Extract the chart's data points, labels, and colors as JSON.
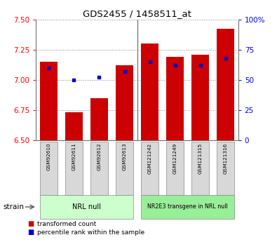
{
  "title": "GDS2455 / 1458511_at",
  "categories": [
    "GSM92610",
    "GSM92611",
    "GSM92612",
    "GSM92613",
    "GSM121242",
    "GSM121249",
    "GSM121315",
    "GSM121316"
  ],
  "transformed_count": [
    7.15,
    6.73,
    6.85,
    7.12,
    7.3,
    7.19,
    7.21,
    7.42
  ],
  "percentile_rank": [
    60,
    50,
    52,
    57,
    65,
    62,
    62,
    68
  ],
  "bar_color": "#cc0000",
  "blue_color": "#0000cc",
  "ylim_left": [
    6.5,
    7.5
  ],
  "ylim_right": [
    0,
    100
  ],
  "yticks_left": [
    6.5,
    6.75,
    7.0,
    7.25,
    7.5
  ],
  "yticks_right": [
    0,
    25,
    50,
    75,
    100
  ],
  "ytick_labels_right": [
    "0",
    "25",
    "50",
    "75",
    "100%"
  ],
  "group1_label": "NRL null",
  "group2_label": "NR2E3 transgene in NRL null",
  "group1_color": "#ccffcc",
  "group2_color": "#99ee99",
  "strain_label": "strain",
  "legend_items": [
    "transformed count",
    "percentile rank within the sample"
  ],
  "bar_width": 0.7,
  "grid_color": "#888888",
  "bg_color": "#ffffff"
}
